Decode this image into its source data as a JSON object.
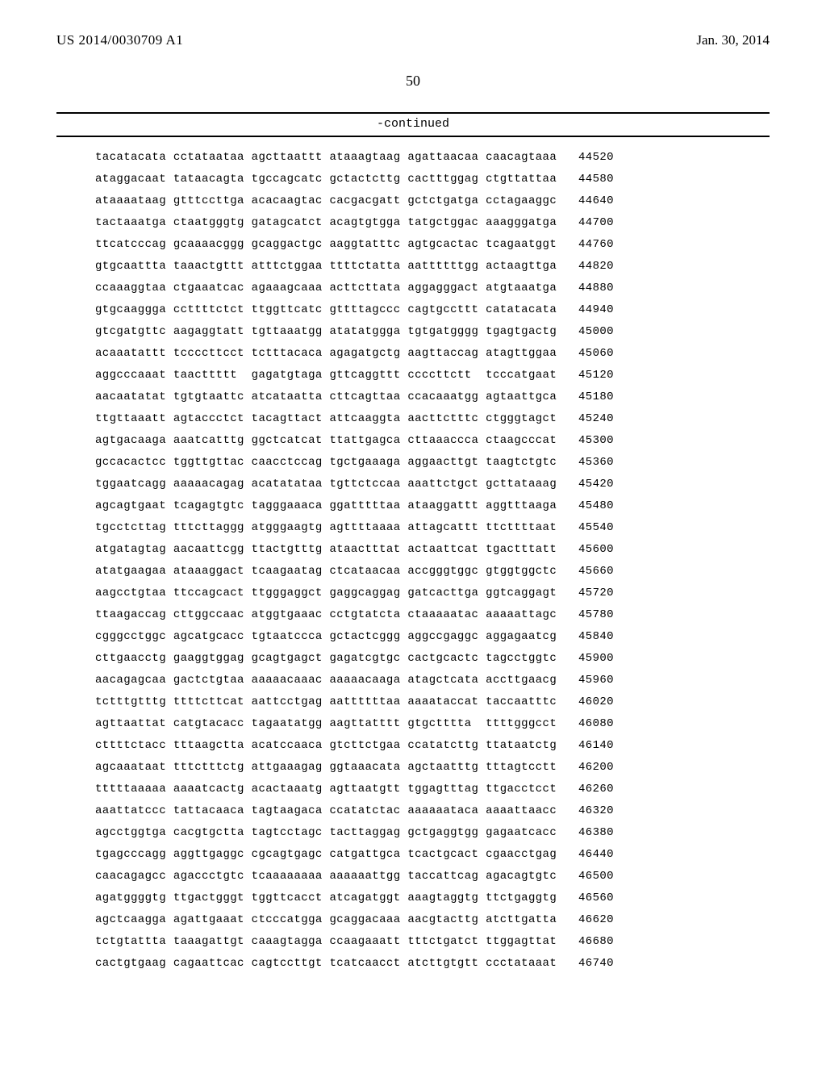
{
  "header": {
    "publication_number": "US 2014/0030709 A1",
    "publication_date": "Jan. 30, 2014"
  },
  "page_number": "50",
  "continued_label": "-continued",
  "sequence_rows": [
    {
      "blocks": [
        "tacatacata",
        "cctataataa",
        "agcttaattt",
        "ataaagtaag",
        "agattaacaa",
        "caacagtaaa"
      ],
      "pos": "44520"
    },
    {
      "blocks": [
        "ataggacaat",
        "tataacagta",
        "tgccagcatc",
        "gctactcttg",
        "cactttggag",
        "ctgttattaa"
      ],
      "pos": "44580"
    },
    {
      "blocks": [
        "ataaaataag",
        "gtttccttga",
        "acacaagtac",
        "cacgacgatt",
        "gctctgatga",
        "cctagaaggc"
      ],
      "pos": "44640"
    },
    {
      "blocks": [
        "tactaaatga",
        "ctaatgggtg",
        "gatagcatct",
        "acagtgtgga",
        "tatgctggac",
        "aaagggatga"
      ],
      "pos": "44700"
    },
    {
      "blocks": [
        "ttcatcccag",
        "gcaaaacggg",
        "gcaggactgc",
        "aaggtatttc",
        "agtgcactac",
        "tcagaatggt"
      ],
      "pos": "44760"
    },
    {
      "blocks": [
        "gtgcaattta",
        "taaactgttt",
        "atttctggaa",
        "ttttctatta",
        "aattttttgg",
        "actaagttga"
      ],
      "pos": "44820"
    },
    {
      "blocks": [
        "ccaaaggtaa",
        "ctgaaatcac",
        "agaaagcaaa",
        "acttcttata",
        "aggagggact",
        "atgtaaatga"
      ],
      "pos": "44880"
    },
    {
      "blocks": [
        "gtgcaaggga",
        "ccttttctct",
        "ttggttcatc",
        "gttttagccc",
        "cagtgccttt",
        "catatacata"
      ],
      "pos": "44940"
    },
    {
      "blocks": [
        "gtcgatgttc",
        "aagaggtatt",
        "tgttaaatgg",
        "atatatggga",
        "tgtgatgggg",
        "tgagtgactg"
      ],
      "pos": "45000"
    },
    {
      "blocks": [
        "acaaatattt",
        "tccccttcct",
        "tctttacaca",
        "agagatgctg",
        "aagttaccag",
        "atagttggaa"
      ],
      "pos": "45060"
    },
    {
      "blocks": [
        "aggcccaaat",
        "taacttttt",
        "gagatgtaga",
        "gttcaggttt",
        "ccccttctt",
        "tcccatgaat"
      ],
      "pos": "45120"
    },
    {
      "blocks": [
        "aacaatatat",
        "tgtgtaattc",
        "atcataatta",
        "cttcagttaa",
        "ccacaaatgg",
        "agtaattgca"
      ],
      "pos": "45180"
    },
    {
      "blocks": [
        "ttgttaaatt",
        "agtaccctct",
        "tacagttact",
        "attcaaggta",
        "aacttctttc",
        "ctgggtagct"
      ],
      "pos": "45240"
    },
    {
      "blocks": [
        "agtgacaaga",
        "aaatcatttg",
        "ggctcatcat",
        "ttattgagca",
        "cttaaaccca",
        "ctaagcccat"
      ],
      "pos": "45300"
    },
    {
      "blocks": [
        "gccacactcc",
        "tggttgttac",
        "caacctccag",
        "tgctgaaaga",
        "aggaacttgt",
        "taagtctgtc"
      ],
      "pos": "45360"
    },
    {
      "blocks": [
        "tggaatcagg",
        "aaaaacagag",
        "acatatataa",
        "tgttctccaa",
        "aaattctgct",
        "gcttataaag"
      ],
      "pos": "45420"
    },
    {
      "blocks": [
        "agcagtgaat",
        "tcagagtgtc",
        "tagggaaaca",
        "ggatttttaa",
        "ataaggattt",
        "aggtttaaga"
      ],
      "pos": "45480"
    },
    {
      "blocks": [
        "tgcctcttag",
        "tttcttaggg",
        "atgggaagtg",
        "agttttaaaa",
        "attagcattt",
        "ttcttttaat"
      ],
      "pos": "45540"
    },
    {
      "blocks": [
        "atgatagtag",
        "aacaattcgg",
        "ttactgtttg",
        "ataactttat",
        "actaattcat",
        "tgactttatt"
      ],
      "pos": "45600"
    },
    {
      "blocks": [
        "atatgaagaa",
        "ataaaggact",
        "tcaagaatag",
        "ctcataacaa",
        "accgggtggc",
        "gtggtggctc"
      ],
      "pos": "45660"
    },
    {
      "blocks": [
        "aagcctgtaa",
        "ttccagcact",
        "ttgggaggct",
        "gaggcaggag",
        "gatcacttga",
        "ggtcaggagt"
      ],
      "pos": "45720"
    },
    {
      "blocks": [
        "ttaagaccag",
        "cttggccaac",
        "atggtgaaac",
        "cctgtatcta",
        "ctaaaaatac",
        "aaaaattagc"
      ],
      "pos": "45780"
    },
    {
      "blocks": [
        "cgggcctggc",
        "agcatgcacc",
        "tgtaatccca",
        "gctactcggg",
        "aggccgaggc",
        "aggagaatcg"
      ],
      "pos": "45840"
    },
    {
      "blocks": [
        "cttgaacctg",
        "gaaggtggag",
        "gcagtgagct",
        "gagatcgtgc",
        "cactgcactc",
        "tagcctggtc"
      ],
      "pos": "45900"
    },
    {
      "blocks": [
        "aacagagcaa",
        "gactctgtaa",
        "aaaaacaaac",
        "aaaaacaaga",
        "atagctcata",
        "accttgaacg"
      ],
      "pos": "45960"
    },
    {
      "blocks": [
        "tctttgtttg",
        "ttttcttcat",
        "aattcctgag",
        "aattttttaa",
        "aaaataccat",
        "taccaatttc"
      ],
      "pos": "46020"
    },
    {
      "blocks": [
        "agttaattat",
        "catgtacacc",
        "tagaatatgg",
        "aagttatttt",
        "gtgctttta",
        "ttttgggcct"
      ],
      "pos": "46080"
    },
    {
      "blocks": [
        "cttttctacc",
        "tttaagctta",
        "acatccaaca",
        "gtcttctgaa",
        "ccatatcttg",
        "ttataatctg"
      ],
      "pos": "46140"
    },
    {
      "blocks": [
        "agcaaataat",
        "tttctttctg",
        "attgaaagag",
        "ggtaaacata",
        "agctaatttg",
        "tttagtcctt"
      ],
      "pos": "46200"
    },
    {
      "blocks": [
        "tttttaaaaa",
        "aaaatcactg",
        "acactaaatg",
        "agttaatgtt",
        "tggagtttag",
        "ttgacctcct"
      ],
      "pos": "46260"
    },
    {
      "blocks": [
        "aaattatccc",
        "tattacaaca",
        "tagtaagaca",
        "ccatatctac",
        "aaaaaataca",
        "aaaattaacc"
      ],
      "pos": "46320"
    },
    {
      "blocks": [
        "agcctggtga",
        "cacgtgctta",
        "tagtcctagc",
        "tacttaggag",
        "gctgaggtgg",
        "gagaatcacc"
      ],
      "pos": "46380"
    },
    {
      "blocks": [
        "tgagcccagg",
        "aggttgaggc",
        "cgcagtgagc",
        "catgattgca",
        "tcactgcact",
        "cgaacctgag"
      ],
      "pos": "46440"
    },
    {
      "blocks": [
        "caacagagcc",
        "agaccctgtc",
        "tcaaaaaaaa",
        "aaaaaattgg",
        "taccattcag",
        "agacagtgtc"
      ],
      "pos": "46500"
    },
    {
      "blocks": [
        "agatggggtg",
        "ttgactgggt",
        "tggttcacct",
        "atcagatggt",
        "aaagtaggtg",
        "ttctgaggtg"
      ],
      "pos": "46560"
    },
    {
      "blocks": [
        "agctcaagga",
        "agattgaaat",
        "ctcccatgga",
        "gcaggacaaa",
        "aacgtacttg",
        "atcttgatta"
      ],
      "pos": "46620"
    },
    {
      "blocks": [
        "tctgtattta",
        "taaagattgt",
        "caaagtagga",
        "ccaagaaatt",
        "tttctgatct",
        "ttggagttat"
      ],
      "pos": "46680"
    },
    {
      "blocks": [
        "cactgtgaag",
        "cagaattcac",
        "cagtccttgt",
        "tcatcaacct",
        "atcttgtgtt",
        "ccctataaat"
      ],
      "pos": "46740"
    }
  ]
}
